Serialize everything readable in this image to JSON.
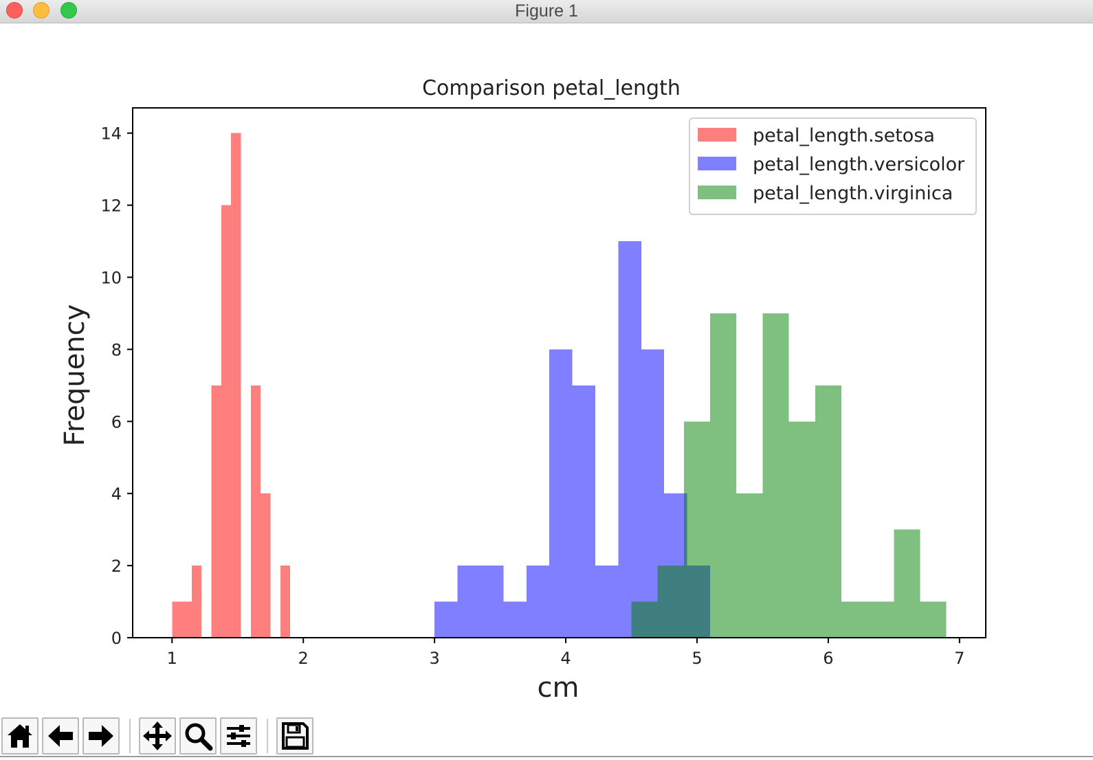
{
  "window": {
    "title": "Figure 1"
  },
  "toolbar": {
    "buttons": [
      {
        "name": "home-button",
        "icon": "home-icon"
      },
      {
        "name": "back-button",
        "icon": "arrow-left-icon"
      },
      {
        "name": "forward-button",
        "icon": "arrow-right-icon"
      },
      {
        "name": "pan-button",
        "icon": "move-icon"
      },
      {
        "name": "zoom-button",
        "icon": "magnifier-icon"
      },
      {
        "name": "configure-subplots-button",
        "icon": "sliders-icon"
      },
      {
        "name": "save-button",
        "icon": "floppy-disk-icon"
      }
    ]
  },
  "chart_data": {
    "type": "bar",
    "title": "Comparison petal_length",
    "xlabel": "cm",
    "ylabel": "Frequency",
    "xlim": [
      0.7,
      7.2
    ],
    "ylim": [
      0,
      14.7
    ],
    "x_ticks": [
      1,
      2,
      3,
      4,
      5,
      6,
      7
    ],
    "y_ticks": [
      0,
      2,
      4,
      6,
      8,
      10,
      12,
      14
    ],
    "grid": false,
    "legend_position": "top-right",
    "series": [
      {
        "name": "petal_length.setosa",
        "color": "#ff0000",
        "alpha": 0.5,
        "bin_edges": [
          1.0,
          1.075,
          1.15,
          1.225,
          1.3,
          1.375,
          1.45,
          1.525,
          1.6,
          1.675,
          1.75,
          1.825,
          1.9
        ],
        "counts": [
          1,
          1,
          2,
          0,
          7,
          12,
          14,
          0,
          7,
          4,
          0,
          2
        ]
      },
      {
        "name": "petal_length.versicolor",
        "color": "#0000ff",
        "alpha": 0.5,
        "bin_edges": [
          3.0,
          3.175,
          3.35,
          3.525,
          3.7,
          3.875,
          4.05,
          4.225,
          4.4,
          4.575,
          4.75,
          4.925,
          5.1
        ],
        "counts": [
          1,
          2,
          2,
          1,
          2,
          8,
          7,
          2,
          11,
          8,
          4,
          2
        ]
      },
      {
        "name": "petal_length.virginica",
        "color": "#008000",
        "alpha": 0.5,
        "bin_edges": [
          4.5,
          4.7,
          4.9,
          5.1,
          5.3,
          5.5,
          5.7,
          5.9,
          6.1,
          6.3,
          6.5,
          6.7,
          6.9
        ],
        "counts": [
          1,
          2,
          6,
          9,
          4,
          9,
          6,
          7,
          1,
          1,
          3,
          1
        ]
      }
    ]
  }
}
